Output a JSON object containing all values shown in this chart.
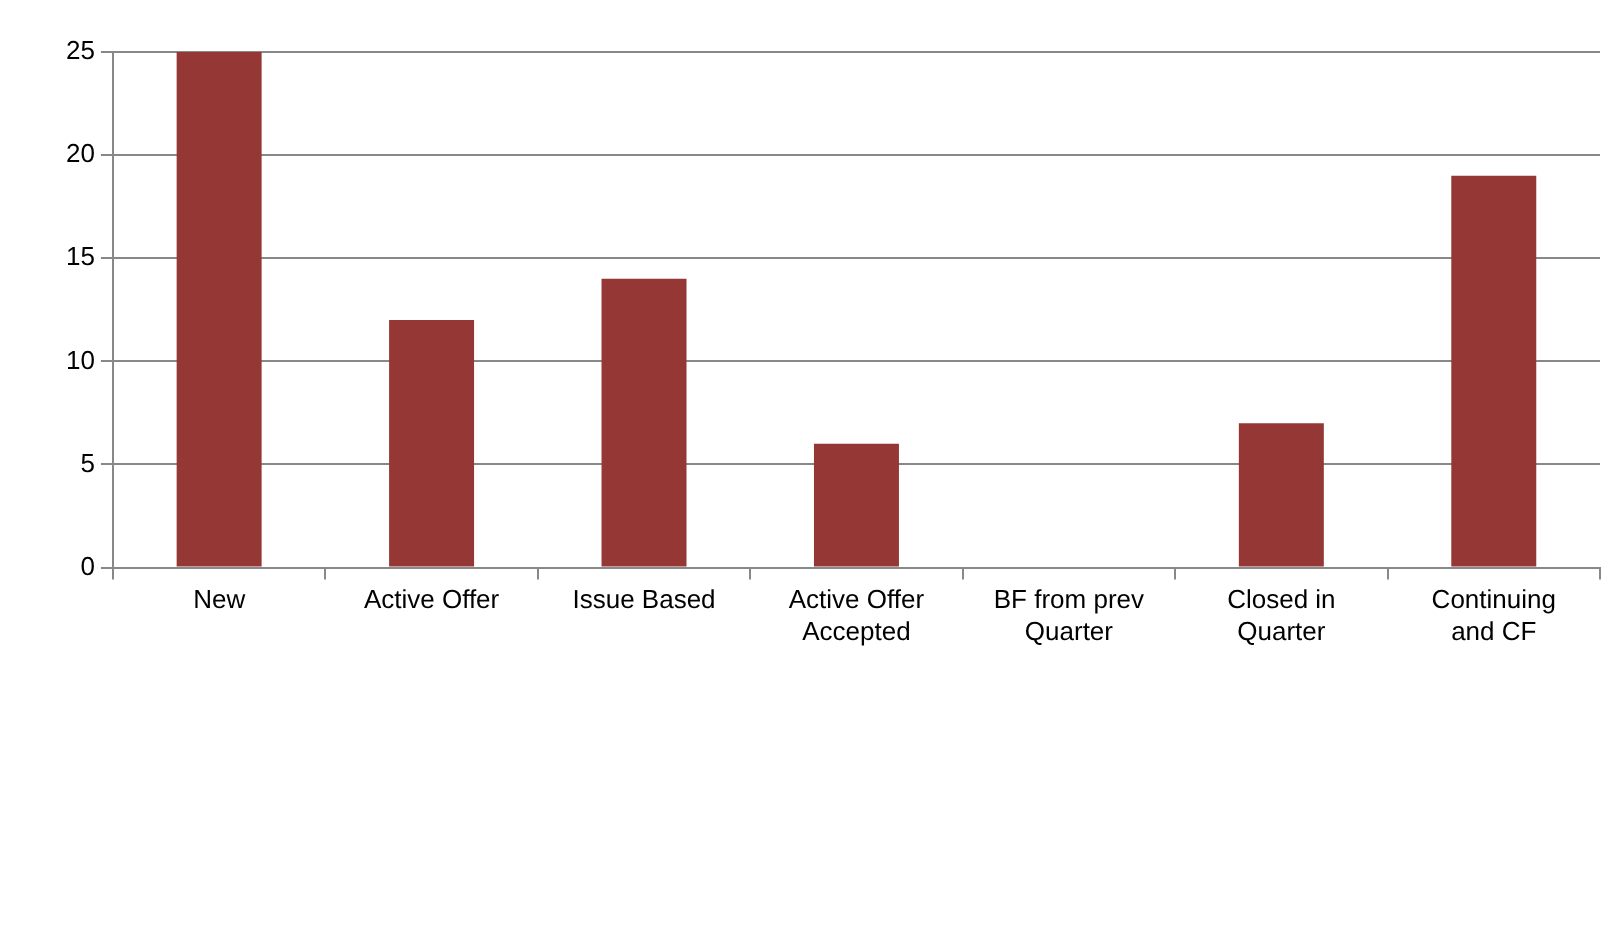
{
  "chart_data": {
    "type": "bar",
    "categories": [
      "New",
      "Active Offer",
      "Issue Based",
      "Active Offer Accepted",
      "BF from prev Quarter",
      "Closed in Quarter",
      "Continuing and CF"
    ],
    "values": [
      25,
      12,
      14,
      6,
      0,
      7,
      19
    ],
    "color": "#953735",
    "ylim": [
      0,
      25
    ],
    "yticks": [
      0,
      5,
      10,
      15,
      20,
      25
    ],
    "grid": "y",
    "legend": false
  }
}
